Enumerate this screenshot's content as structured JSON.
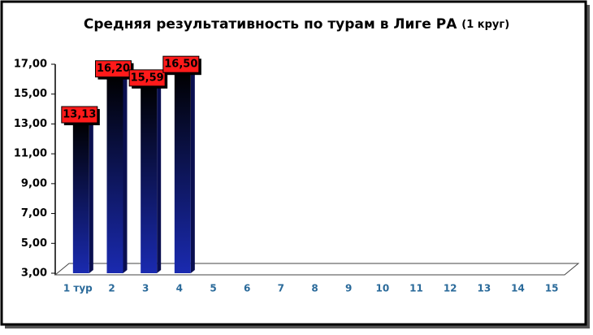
{
  "chart_data": {
    "type": "bar",
    "title": "Средняя результативность по турам в Лиге РА",
    "subtitle": "(1 круг)",
    "categories": [
      "1 тур",
      "2",
      "3",
      "4",
      "5",
      "6",
      "7",
      "8",
      "9",
      "10",
      "11",
      "12",
      "13",
      "14",
      "15"
    ],
    "values": [
      13.13,
      16.2,
      15.59,
      16.5,
      null,
      null,
      null,
      null,
      null,
      null,
      null,
      null,
      null,
      null,
      null
    ],
    "value_labels": [
      "13,13",
      "16,20",
      "15,59",
      "16,50",
      null,
      null,
      null,
      null,
      null,
      null,
      null,
      null,
      null,
      null,
      null
    ],
    "color": "#1a2ab0",
    "label_color": "#ff1a1a",
    "ylim": [
      3,
      17
    ],
    "yticks": [
      {
        "value": 3,
        "label": "3,00"
      },
      {
        "value": 5,
        "label": "5,00"
      },
      {
        "value": 7,
        "label": "7,00"
      },
      {
        "value": 9,
        "label": "9,00"
      },
      {
        "value": 11,
        "label": "11,00"
      },
      {
        "value": 13,
        "label": "13,00"
      },
      {
        "value": 15,
        "label": "15,00"
      },
      {
        "value": 17,
        "label": "17,00"
      }
    ],
    "grid": false
  }
}
